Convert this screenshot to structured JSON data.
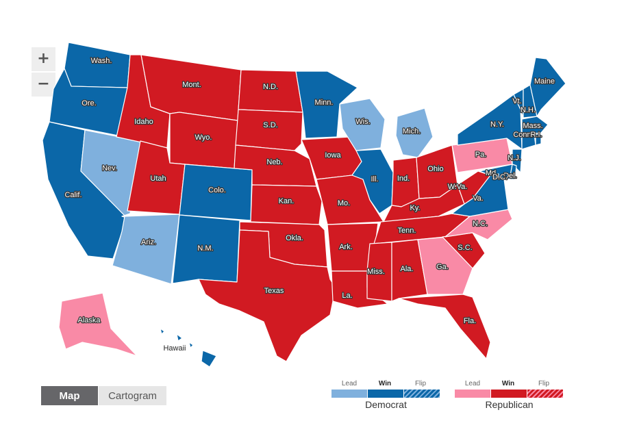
{
  "zoom": {
    "in_label": "+",
    "out_label": "−"
  },
  "view_toggle": {
    "map": "Map",
    "cartogram": "Cartogram",
    "selected": "Map"
  },
  "colors": {
    "dem_lead": "#7fb0dd",
    "dem_win": "#0b67a8",
    "dem_flip": "#0b67a8",
    "rep_lead": "#f98aa6",
    "rep_win": "#d11a22",
    "rep_flip": "#d11a22"
  },
  "legend": {
    "dem": {
      "party": "Democrat",
      "lead": "Lead",
      "win": "Win",
      "flip": "Flip"
    },
    "rep": {
      "party": "Republican",
      "lead": "Lead",
      "win": "Win",
      "flip": "Flip"
    }
  },
  "states": [
    {
      "id": "WA",
      "label": "Wash.",
      "status": "dem_win"
    },
    {
      "id": "OR",
      "label": "Ore.",
      "status": "dem_win"
    },
    {
      "id": "CA",
      "label": "Calif.",
      "status": "dem_win"
    },
    {
      "id": "NV",
      "label": "Nev.",
      "status": "dem_lead"
    },
    {
      "id": "ID",
      "label": "Idaho",
      "status": "rep_win"
    },
    {
      "id": "MT",
      "label": "Mont.",
      "status": "rep_win"
    },
    {
      "id": "WY",
      "label": "Wyo.",
      "status": "rep_win"
    },
    {
      "id": "UT",
      "label": "Utah",
      "status": "rep_win"
    },
    {
      "id": "AZ",
      "label": "Ariz.",
      "status": "dem_lead"
    },
    {
      "id": "CO",
      "label": "Colo.",
      "status": "dem_win"
    },
    {
      "id": "NM",
      "label": "N.M.",
      "status": "dem_win"
    },
    {
      "id": "ND",
      "label": "N.D.",
      "status": "rep_win"
    },
    {
      "id": "SD",
      "label": "S.D.",
      "status": "rep_win"
    },
    {
      "id": "NE",
      "label": "Neb.",
      "status": "rep_win"
    },
    {
      "id": "KS",
      "label": "Kan.",
      "status": "rep_win"
    },
    {
      "id": "OK",
      "label": "Okla.",
      "status": "rep_win"
    },
    {
      "id": "TX",
      "label": "Texas",
      "status": "rep_win"
    },
    {
      "id": "MN",
      "label": "Minn.",
      "status": "dem_win"
    },
    {
      "id": "IA",
      "label": "Iowa",
      "status": "rep_win"
    },
    {
      "id": "MO",
      "label": "Mo.",
      "status": "rep_win"
    },
    {
      "id": "AR",
      "label": "Ark.",
      "status": "rep_win"
    },
    {
      "id": "LA",
      "label": "La.",
      "status": "rep_win"
    },
    {
      "id": "WI",
      "label": "Wis.",
      "status": "dem_lead"
    },
    {
      "id": "IL",
      "label": "Ill.",
      "status": "dem_win"
    },
    {
      "id": "MI",
      "label": "Mich.",
      "status": "dem_lead"
    },
    {
      "id": "IN",
      "label": "Ind.",
      "status": "rep_win"
    },
    {
      "id": "OH",
      "label": "Ohio",
      "status": "rep_win"
    },
    {
      "id": "KY",
      "label": "Ky.",
      "status": "rep_win"
    },
    {
      "id": "TN",
      "label": "Tenn.",
      "status": "rep_win"
    },
    {
      "id": "MS",
      "label": "Miss.",
      "status": "rep_win"
    },
    {
      "id": "AL",
      "label": "Ala.",
      "status": "rep_win"
    },
    {
      "id": "GA",
      "label": "Ga.",
      "status": "rep_lead"
    },
    {
      "id": "FL",
      "label": "Fla.",
      "status": "rep_win"
    },
    {
      "id": "SC",
      "label": "S.C.",
      "status": "rep_win"
    },
    {
      "id": "NC",
      "label": "N.C.",
      "status": "rep_lead"
    },
    {
      "id": "VA",
      "label": "Va.",
      "status": "dem_win"
    },
    {
      "id": "WV",
      "label": "W.Va.",
      "status": "rep_win"
    },
    {
      "id": "PA",
      "label": "Pa.",
      "status": "rep_lead"
    },
    {
      "id": "NY",
      "label": "N.Y.",
      "status": "dem_win"
    },
    {
      "id": "NJ",
      "label": "N.J.",
      "status": "dem_win"
    },
    {
      "id": "MD",
      "label": "Md.",
      "status": "dem_win"
    },
    {
      "id": "DE",
      "label": "Del.",
      "status": "dem_win"
    },
    {
      "id": "DC",
      "label": "D.C.",
      "status": "dem_win"
    },
    {
      "id": "VT",
      "label": "Vt.",
      "status": "dem_win"
    },
    {
      "id": "NH",
      "label": "N.H.",
      "status": "dem_win"
    },
    {
      "id": "MA",
      "label": "Mass.",
      "status": "dem_win"
    },
    {
      "id": "CT",
      "label": "Conn.",
      "status": "dem_win"
    },
    {
      "id": "RI",
      "label": "R.I.",
      "status": "dem_win"
    },
    {
      "id": "ME",
      "label": "Maine",
      "status": "dem_win"
    },
    {
      "id": "AK",
      "label": "Alaska",
      "status": "rep_lead"
    },
    {
      "id": "HI",
      "label": "Hawaii",
      "status": "dem_win"
    }
  ]
}
